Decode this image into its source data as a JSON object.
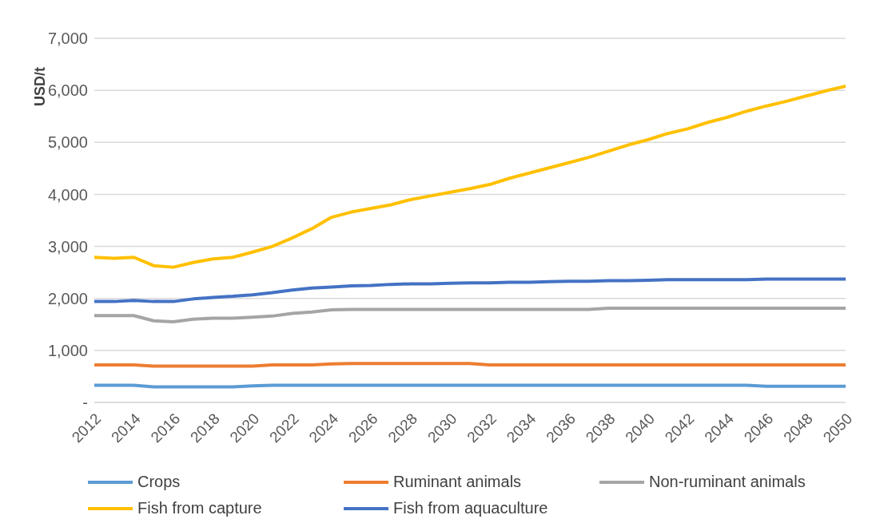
{
  "chart_data": {
    "type": "line",
    "ylabel": "USD/t",
    "x": [
      2012,
      2013,
      2014,
      2015,
      2016,
      2017,
      2018,
      2019,
      2020,
      2021,
      2022,
      2023,
      2024,
      2025,
      2026,
      2027,
      2028,
      2029,
      2030,
      2031,
      2032,
      2033,
      2034,
      2035,
      2036,
      2037,
      2038,
      2039,
      2040,
      2041,
      2042,
      2043,
      2044,
      2045,
      2046,
      2047,
      2048,
      2049,
      2050
    ],
    "xlim": [
      2012,
      2050
    ],
    "xticks": [
      2012,
      2014,
      2016,
      2018,
      2020,
      2022,
      2024,
      2026,
      2028,
      2030,
      2032,
      2034,
      2036,
      2038,
      2040,
      2042,
      2044,
      2046,
      2048,
      2050
    ],
    "ylim": [
      0,
      7000
    ],
    "yticks": [
      {
        "value": 0,
        "label": "-"
      },
      {
        "value": 1000,
        "label": "1,000"
      },
      {
        "value": 2000,
        "label": "2,000"
      },
      {
        "value": 3000,
        "label": "3,000"
      },
      {
        "value": 4000,
        "label": "4,000"
      },
      {
        "value": 5000,
        "label": "5,000"
      },
      {
        "value": 6000,
        "label": "6,000"
      },
      {
        "value": 7000,
        "label": "7,000"
      }
    ],
    "grid": "y",
    "legend": "bottom",
    "marker": "none",
    "line_style": "solid",
    "series": [
      {
        "name": "Crops",
        "color": "#5b9bd5",
        "values": [
          330,
          330,
          330,
          300,
          300,
          300,
          300,
          300,
          320,
          330,
          330,
          330,
          330,
          330,
          330,
          330,
          330,
          330,
          330,
          330,
          330,
          330,
          330,
          330,
          330,
          330,
          330,
          330,
          330,
          330,
          330,
          330,
          330,
          330,
          310,
          310,
          310,
          310,
          310
        ]
      },
      {
        "name": "Ruminant animals",
        "color": "#ed7d31",
        "values": [
          720,
          720,
          720,
          700,
          700,
          700,
          700,
          700,
          700,
          720,
          720,
          720,
          740,
          750,
          750,
          750,
          750,
          750,
          750,
          750,
          720,
          720,
          720,
          720,
          720,
          720,
          720,
          720,
          720,
          720,
          720,
          720,
          720,
          720,
          720,
          720,
          720,
          720,
          720
        ]
      },
      {
        "name": "Non-ruminant animals",
        "color": "#a5a5a5",
        "values": [
          1670,
          1670,
          1670,
          1570,
          1550,
          1600,
          1620,
          1620,
          1640,
          1660,
          1710,
          1740,
          1780,
          1790,
          1790,
          1790,
          1790,
          1790,
          1790,
          1790,
          1790,
          1790,
          1790,
          1790,
          1790,
          1790,
          1810,
          1810,
          1810,
          1810,
          1810,
          1810,
          1810,
          1810,
          1810,
          1810,
          1810,
          1810,
          1810
        ]
      },
      {
        "name": "Fish from capture",
        "color": "#ffc000",
        "values": [
          2790,
          2770,
          2790,
          2630,
          2600,
          2690,
          2760,
          2790,
          2890,
          3000,
          3160,
          3340,
          3560,
          3660,
          3730,
          3800,
          3900,
          3970,
          4040,
          4110,
          4190,
          4310,
          4410,
          4510,
          4610,
          4710,
          4830,
          4950,
          5050,
          5170,
          5260,
          5380,
          5480,
          5600,
          5700,
          5790,
          5890,
          5990,
          6080
        ]
      },
      {
        "name": "Fish from aquaculture",
        "color": "#4472c4",
        "values": [
          1940,
          1940,
          1960,
          1940,
          1940,
          1990,
          2020,
          2040,
          2070,
          2110,
          2160,
          2200,
          2220,
          2240,
          2250,
          2270,
          2280,
          2280,
          2290,
          2300,
          2300,
          2310,
          2310,
          2320,
          2330,
          2330,
          2340,
          2340,
          2350,
          2360,
          2360,
          2360,
          2360,
          2360,
          2370,
          2370,
          2370,
          2370,
          2370
        ]
      }
    ]
  }
}
